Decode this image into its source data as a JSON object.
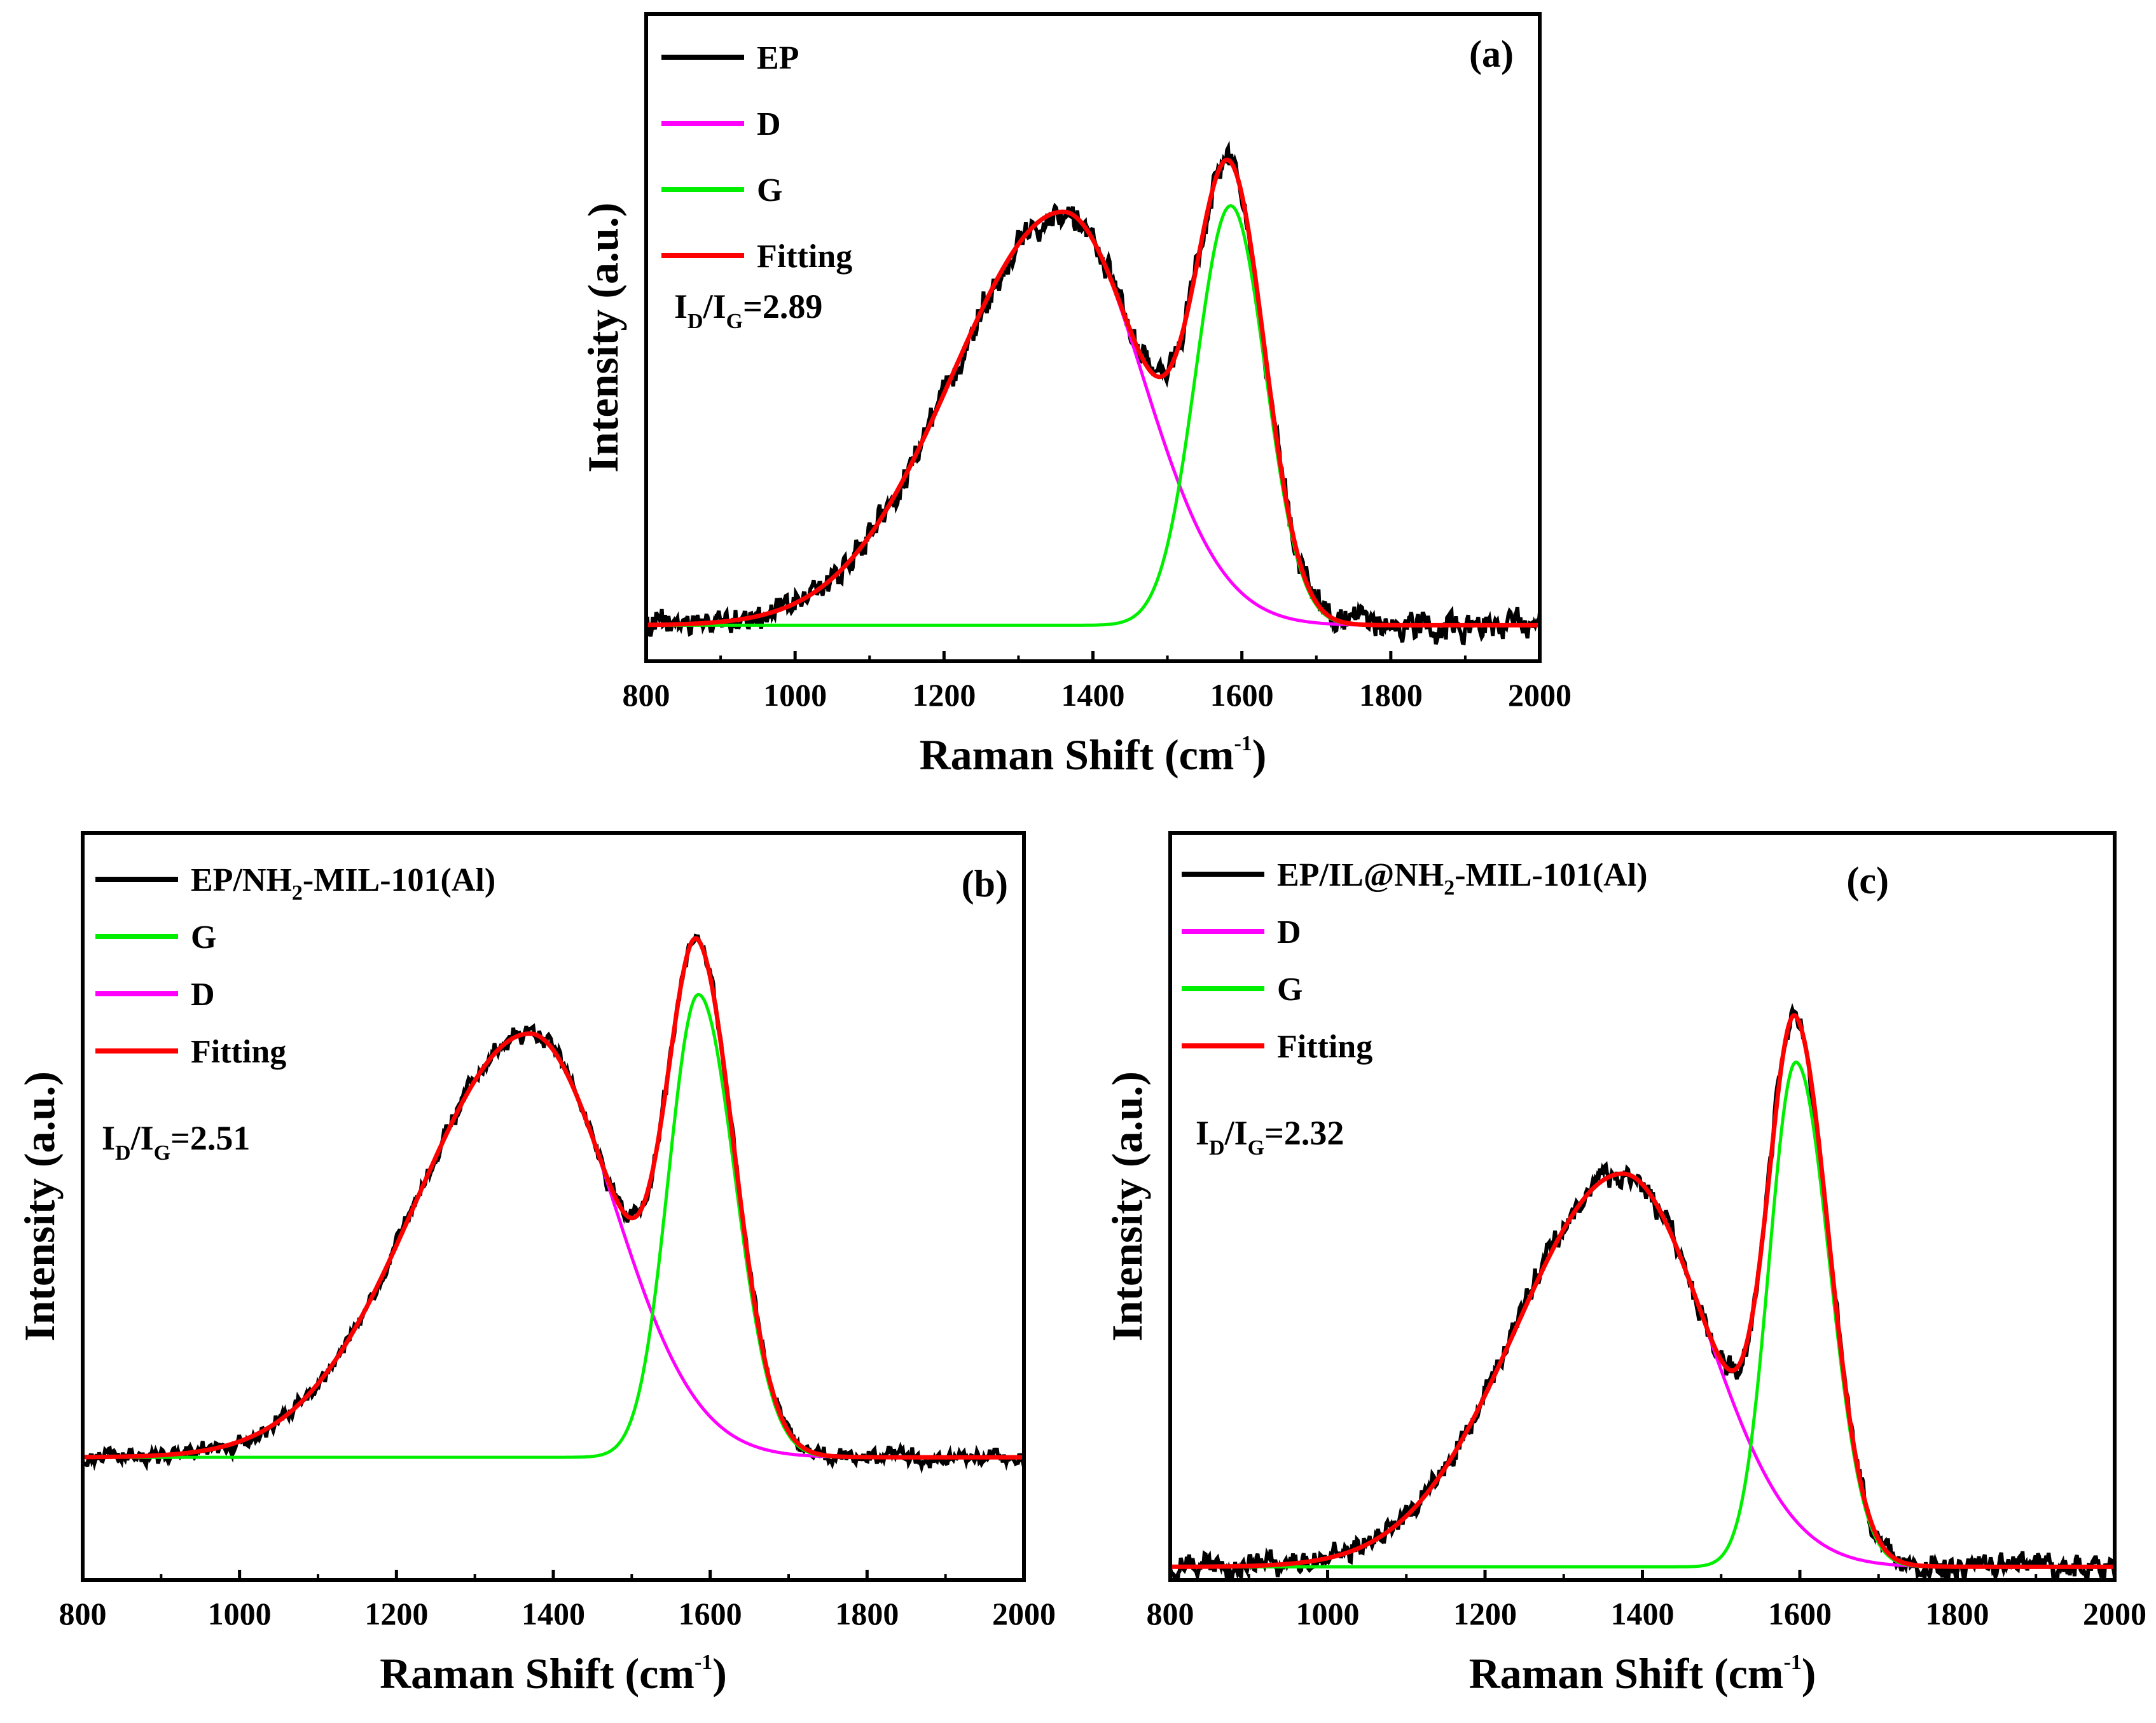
{
  "chart_data": [
    {
      "type": "line",
      "panel_label": "(a)",
      "xlabel": "Raman Shift (cm",
      "xlabel_sup": "-1",
      "xlabel_tail": ")",
      "ylabel": "Intensity (a.u.)",
      "xlim": [
        800,
        2000
      ],
      "ylim": [
        -0.06,
        1.02
      ],
      "xticks": [
        800,
        1000,
        1200,
        1400,
        1600,
        1800,
        2000
      ],
      "ratio": {
        "i": "I",
        "sub_d": "D",
        "slash": "/I",
        "sub_g": "G",
        "value": "=2.89"
      },
      "bands": {
        "D": {
          "center": 1360,
          "amp": 0.69,
          "hwhm_left": 175,
          "hwhm_right": 125
        },
        "G": {
          "center": 1585,
          "amp": 0.7,
          "hwhm_left": 55,
          "hwhm_right": 55
        }
      },
      "noise": 0.022,
      "series": [
        {
          "name": "EP",
          "role": "data",
          "color": "#000000"
        },
        {
          "name": "D",
          "role": "D",
          "color": "#ff00ff"
        },
        {
          "name": "G",
          "role": "G",
          "color": "#00ee00"
        },
        {
          "name": "Fitting",
          "role": "fit",
          "color": "#ff0000"
        }
      ]
    },
    {
      "type": "line",
      "panel_label": "(b)",
      "xlabel": "Raman Shift (cm",
      "xlabel_sup": "-1",
      "xlabel_tail": ")",
      "ylabel": "Intensity (a.u.)",
      "xlim": [
        800,
        2000
      ],
      "ylim": [
        -0.22,
        1.12
      ],
      "xticks": [
        800,
        1000,
        1200,
        1400,
        1600,
        1800,
        2000
      ],
      "ratio": {
        "i": "I",
        "sub_d": "D",
        "slash": "/I",
        "sub_g": "G",
        "value": "=2.51"
      },
      "bands": {
        "D": {
          "center": 1370,
          "amp": 0.76,
          "hwhm_left": 170,
          "hwhm_right": 125
        },
        "G": {
          "center": 1585,
          "amp": 0.83,
          "hwhm_left": 45,
          "hwhm_right": 55
        }
      },
      "noise": 0.014,
      "series": [
        {
          "name": "EP/NH",
          "name_sub": "2",
          "name_tail": "-MIL-101(Al)",
          "role": "data",
          "color": "#000000"
        },
        {
          "name": "G",
          "role": "G",
          "color": "#00ee00"
        },
        {
          "name": "D",
          "role": "D",
          "color": "#ff00ff"
        },
        {
          "name": "Fitting",
          "role": "fit",
          "color": "#ff0000"
        }
      ]
    },
    {
      "type": "line",
      "panel_label": "(c)",
      "xlabel": "Raman Shift (cm",
      "xlabel_sup": "-1",
      "xlabel_tail": ")",
      "ylabel": "Intensity (a.u.)",
      "xlim": [
        800,
        2000
      ],
      "ylim": [
        -0.02,
        1.12
      ],
      "xticks": [
        800,
        1000,
        1200,
        1400,
        1600,
        1800,
        2000
      ],
      "ratio": {
        "i": "I",
        "sub_d": "D",
        "slash": "/I",
        "sub_g": "G",
        "value": "=2.32"
      },
      "bands": {
        "D": {
          "center": 1375,
          "amp": 0.6,
          "hwhm_left": 160,
          "hwhm_right": 125
        },
        "G": {
          "center": 1595,
          "amp": 0.77,
          "hwhm_left": 40,
          "hwhm_right": 50
        }
      },
      "noise": 0.018,
      "series": [
        {
          "name": "EP/IL@NH",
          "name_sub": "2",
          "name_tail": "-MIL-101(Al)",
          "role": "data",
          "color": "#000000"
        },
        {
          "name": "D",
          "role": "D",
          "color": "#ff00ff"
        },
        {
          "name": "G",
          "role": "G",
          "color": "#00ee00"
        },
        {
          "name": "Fitting",
          "role": "fit",
          "color": "#ff0000"
        }
      ]
    }
  ]
}
